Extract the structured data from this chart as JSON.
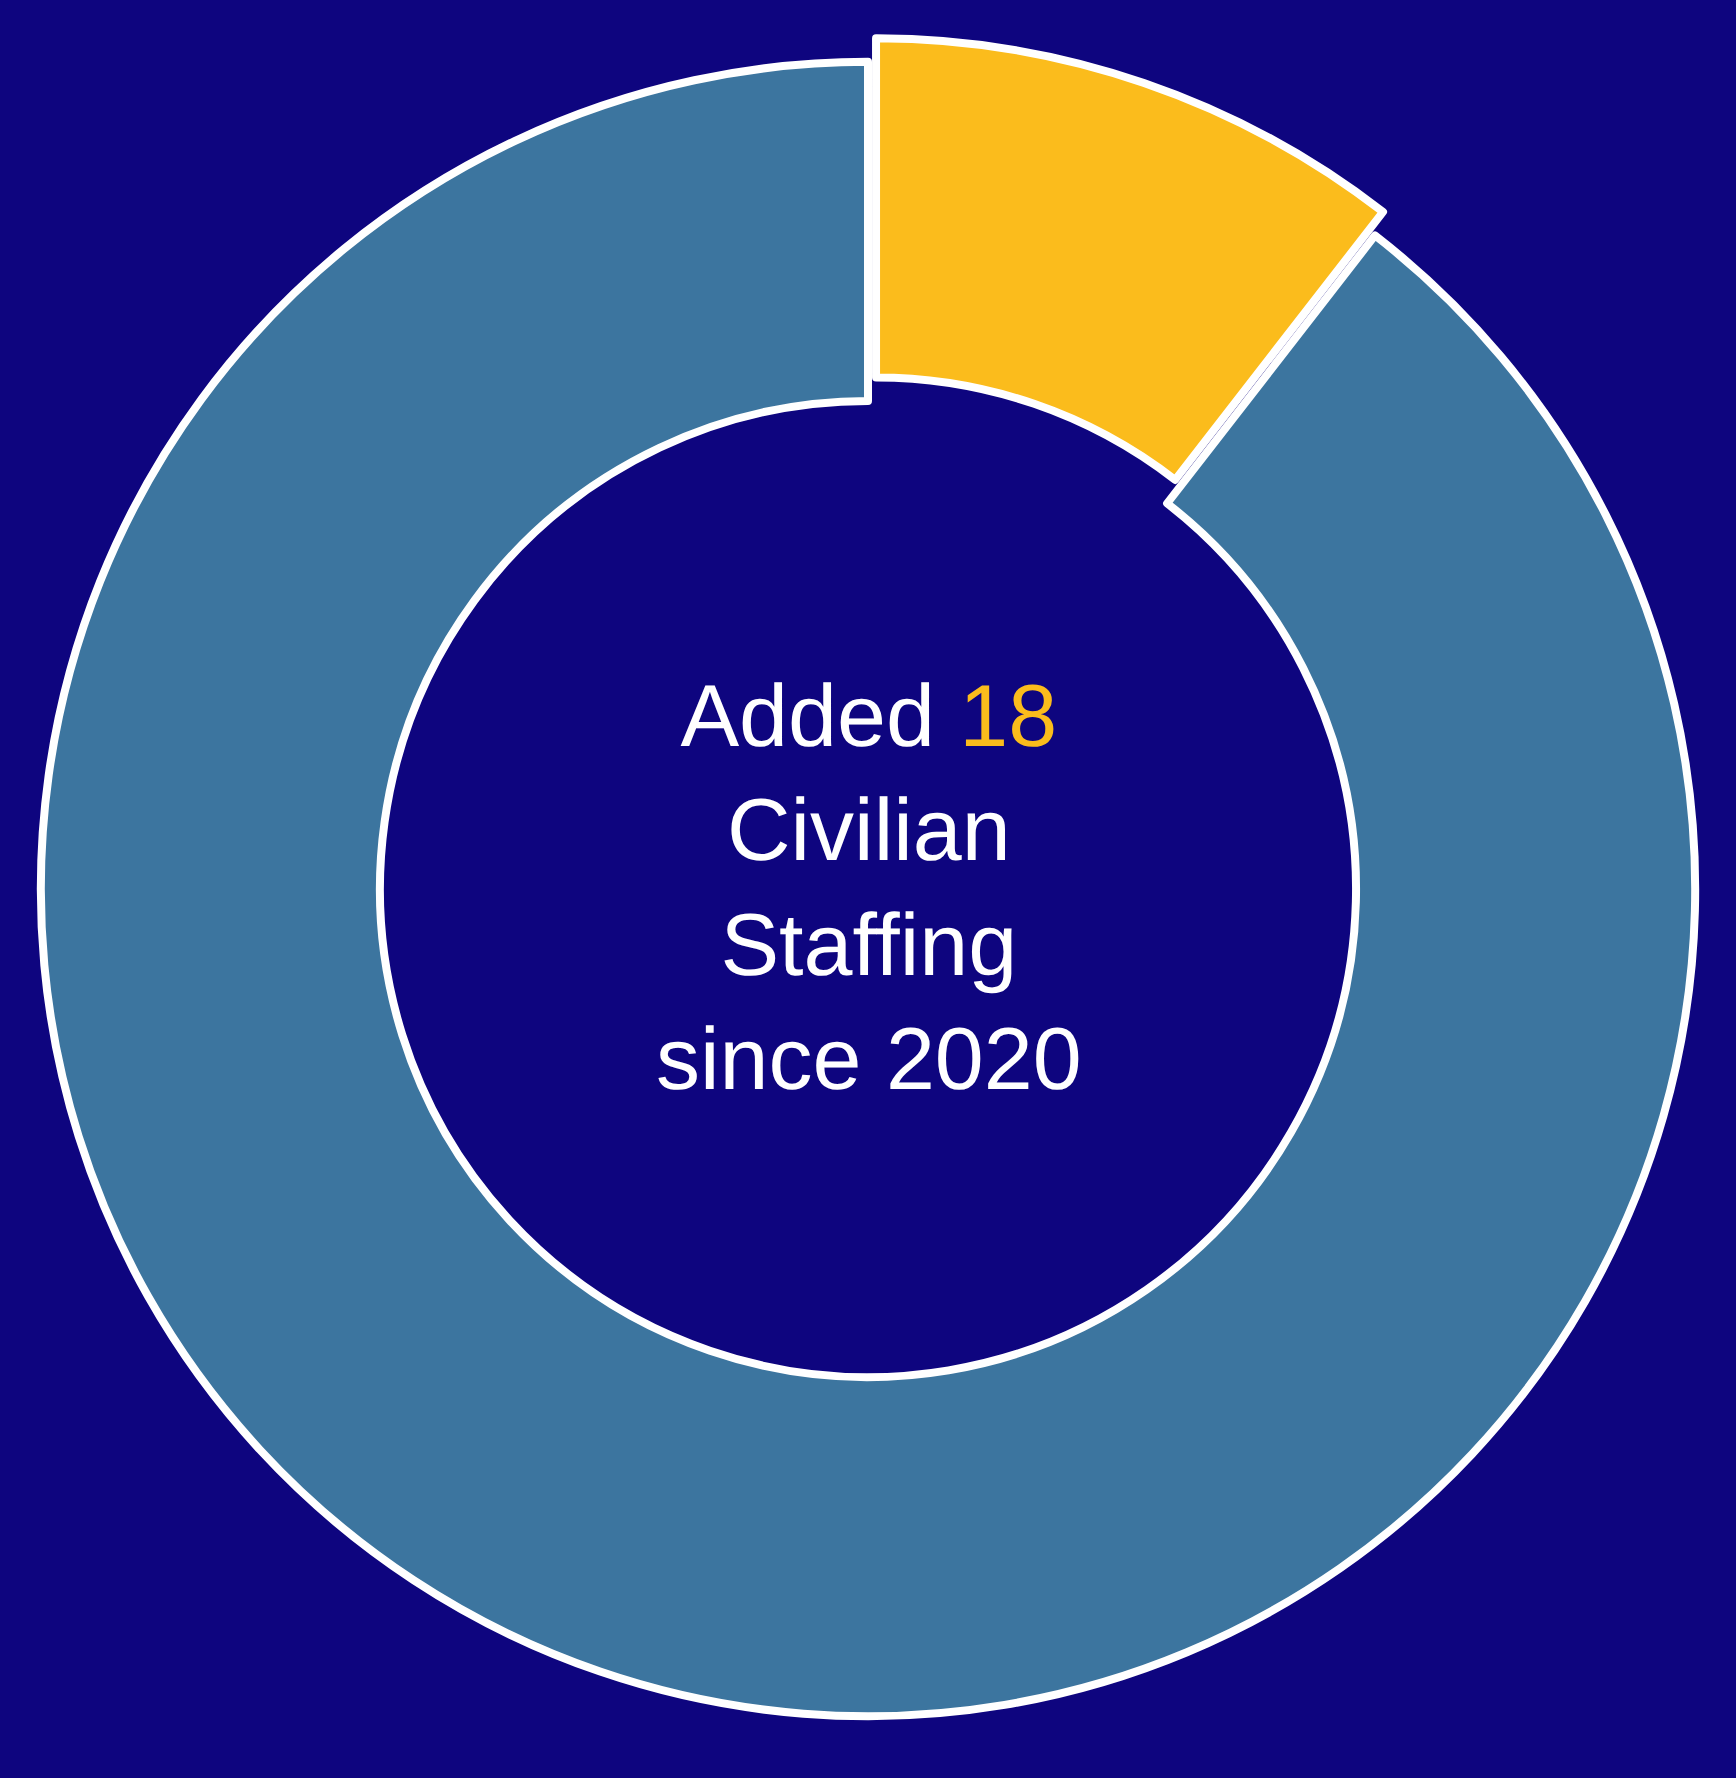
{
  "chart_data": {
    "type": "donut",
    "categories": [
      null,
      null
    ],
    "values": [
      10.5,
      89.5
    ],
    "colors": [
      "#fbbc1c",
      "#3c759f"
    ],
    "annotations": [
      "Added 18 Civilian Staffing since 2020"
    ],
    "legend": false
  }
}
